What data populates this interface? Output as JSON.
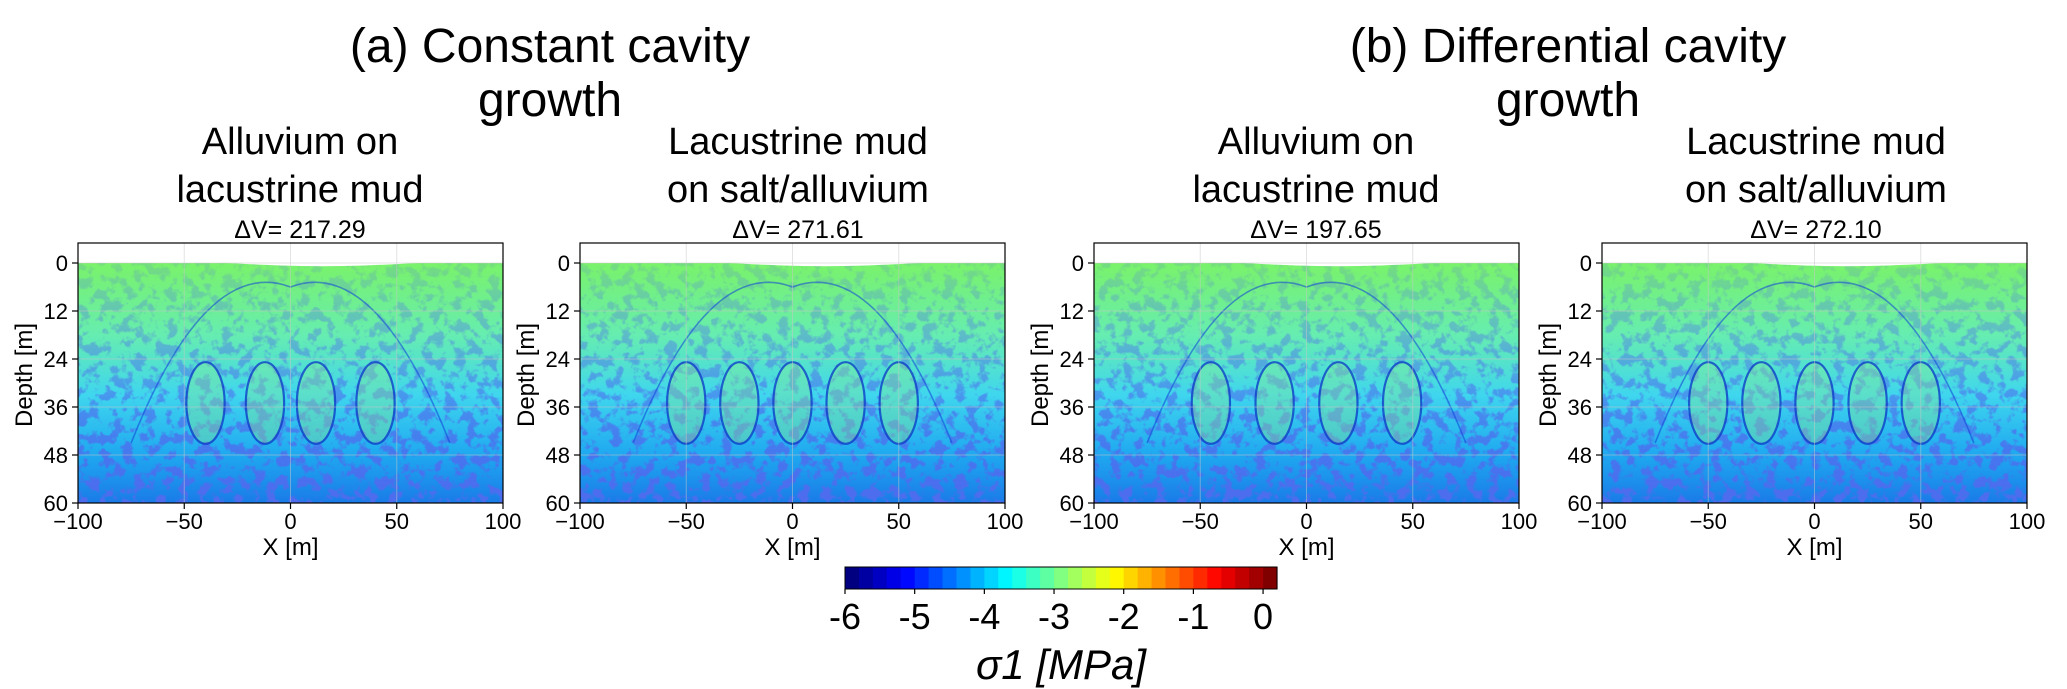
{
  "group_titles": [
    "(a) Constant cavity\ngrowth",
    "(b) Differential cavity\ngrowth"
  ],
  "chart_data": [
    {
      "type": "heatmap",
      "title": "Alluvium on\nlacustrine mud",
      "subtitle": "ΔV= 217.29",
      "xlabel": "X [m]",
      "ylabel": "Depth [m]",
      "xlim": [
        -100,
        100
      ],
      "ylim": [
        0,
        60
      ],
      "y_inverted": true,
      "xticks": [
        -100,
        -50,
        0,
        50,
        100
      ],
      "yticks": [
        0,
        12,
        24,
        36,
        48,
        60
      ],
      "cavities_x": [
        -40,
        -12,
        12,
        40
      ]
    },
    {
      "type": "heatmap",
      "title": "Lacustrine mud\non salt/alluvium",
      "subtitle": "ΔV= 271.61",
      "xlabel": "X [m]",
      "ylabel": "Depth [m]",
      "xlim": [
        -100,
        100
      ],
      "ylim": [
        0,
        60
      ],
      "y_inverted": true,
      "xticks": [
        -100,
        -50,
        0,
        50,
        100
      ],
      "yticks": [
        0,
        12,
        24,
        36,
        48,
        60
      ],
      "cavities_x": [
        -50,
        -25,
        0,
        25,
        50
      ]
    },
    {
      "type": "heatmap",
      "title": "Alluvium on\nlacustrine mud",
      "subtitle": "ΔV= 197.65",
      "xlabel": "X [m]",
      "ylabel": "Depth [m]",
      "xlim": [
        -100,
        100
      ],
      "ylim": [
        0,
        60
      ],
      "y_inverted": true,
      "xticks": [
        -100,
        -50,
        0,
        50,
        100
      ],
      "yticks": [
        0,
        12,
        24,
        36,
        48,
        60
      ],
      "cavities_x": [
        -45,
        -15,
        15,
        45
      ]
    },
    {
      "type": "heatmap",
      "title": "Lacustrine mud\non salt/alluvium",
      "subtitle": "ΔV= 272.10",
      "xlabel": "X [m]",
      "ylabel": "Depth [m]",
      "xlim": [
        -100,
        100
      ],
      "ylim": [
        0,
        60
      ],
      "y_inverted": true,
      "xticks": [
        -100,
        -50,
        0,
        50,
        100
      ],
      "yticks": [
        0,
        12,
        24,
        36,
        48,
        60
      ],
      "cavities_x": [
        -50,
        -25,
        0,
        25,
        50
      ]
    }
  ],
  "colorbar": {
    "ticks": [
      -6,
      -5,
      -4,
      -3,
      -2,
      -1,
      0
    ],
    "range": [
      -6,
      0.2
    ],
    "label": "σ1 [MPa]",
    "colormap": "jet"
  }
}
